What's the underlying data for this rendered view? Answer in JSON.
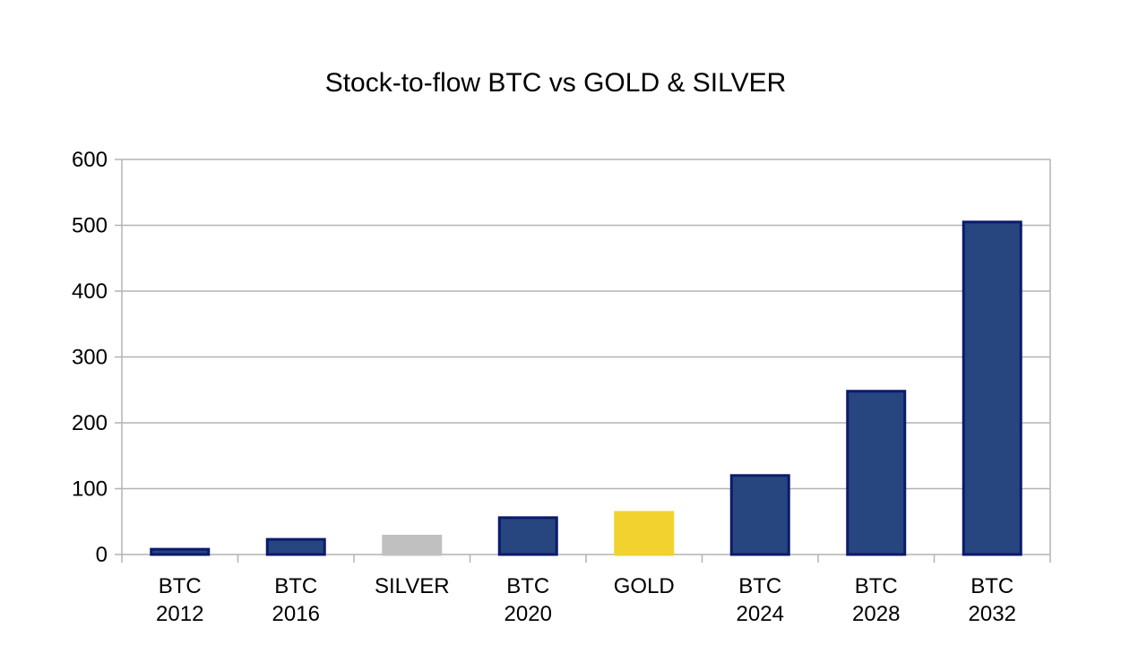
{
  "chart_data": {
    "type": "bar",
    "title": "Stock-to-flow BTC vs GOLD & SILVER",
    "xlabel": "",
    "ylabel": "",
    "ylim": [
      0,
      600
    ],
    "yticks": [
      0,
      100,
      200,
      300,
      400,
      500,
      600
    ],
    "grid": true,
    "legend": "none",
    "categories": [
      [
        "BTC",
        "2012"
      ],
      [
        "BTC",
        "2016"
      ],
      [
        "SILVER"
      ],
      [
        "BTC",
        "2020"
      ],
      [
        "GOLD"
      ],
      [
        "BTC",
        "2024"
      ],
      [
        "BTC",
        "2028"
      ],
      [
        "BTC",
        "2032"
      ]
    ],
    "values": [
      8,
      23,
      28,
      56,
      64,
      120,
      248,
      505
    ],
    "colors": [
      "#27457f",
      "#27457f",
      "#c0c0c0",
      "#27457f",
      "#f2d22e",
      "#27457f",
      "#27457f",
      "#27457f"
    ],
    "border_colors": [
      "#0d1a6b",
      "#0d1a6b",
      "#c0c0c0",
      "#0d1a6b",
      "#f2d22e",
      "#0d1a6b",
      "#0d1a6b",
      "#0d1a6b"
    ],
    "gridline_color": "#b3b3b3",
    "axis_color": "#b3b3b3"
  }
}
